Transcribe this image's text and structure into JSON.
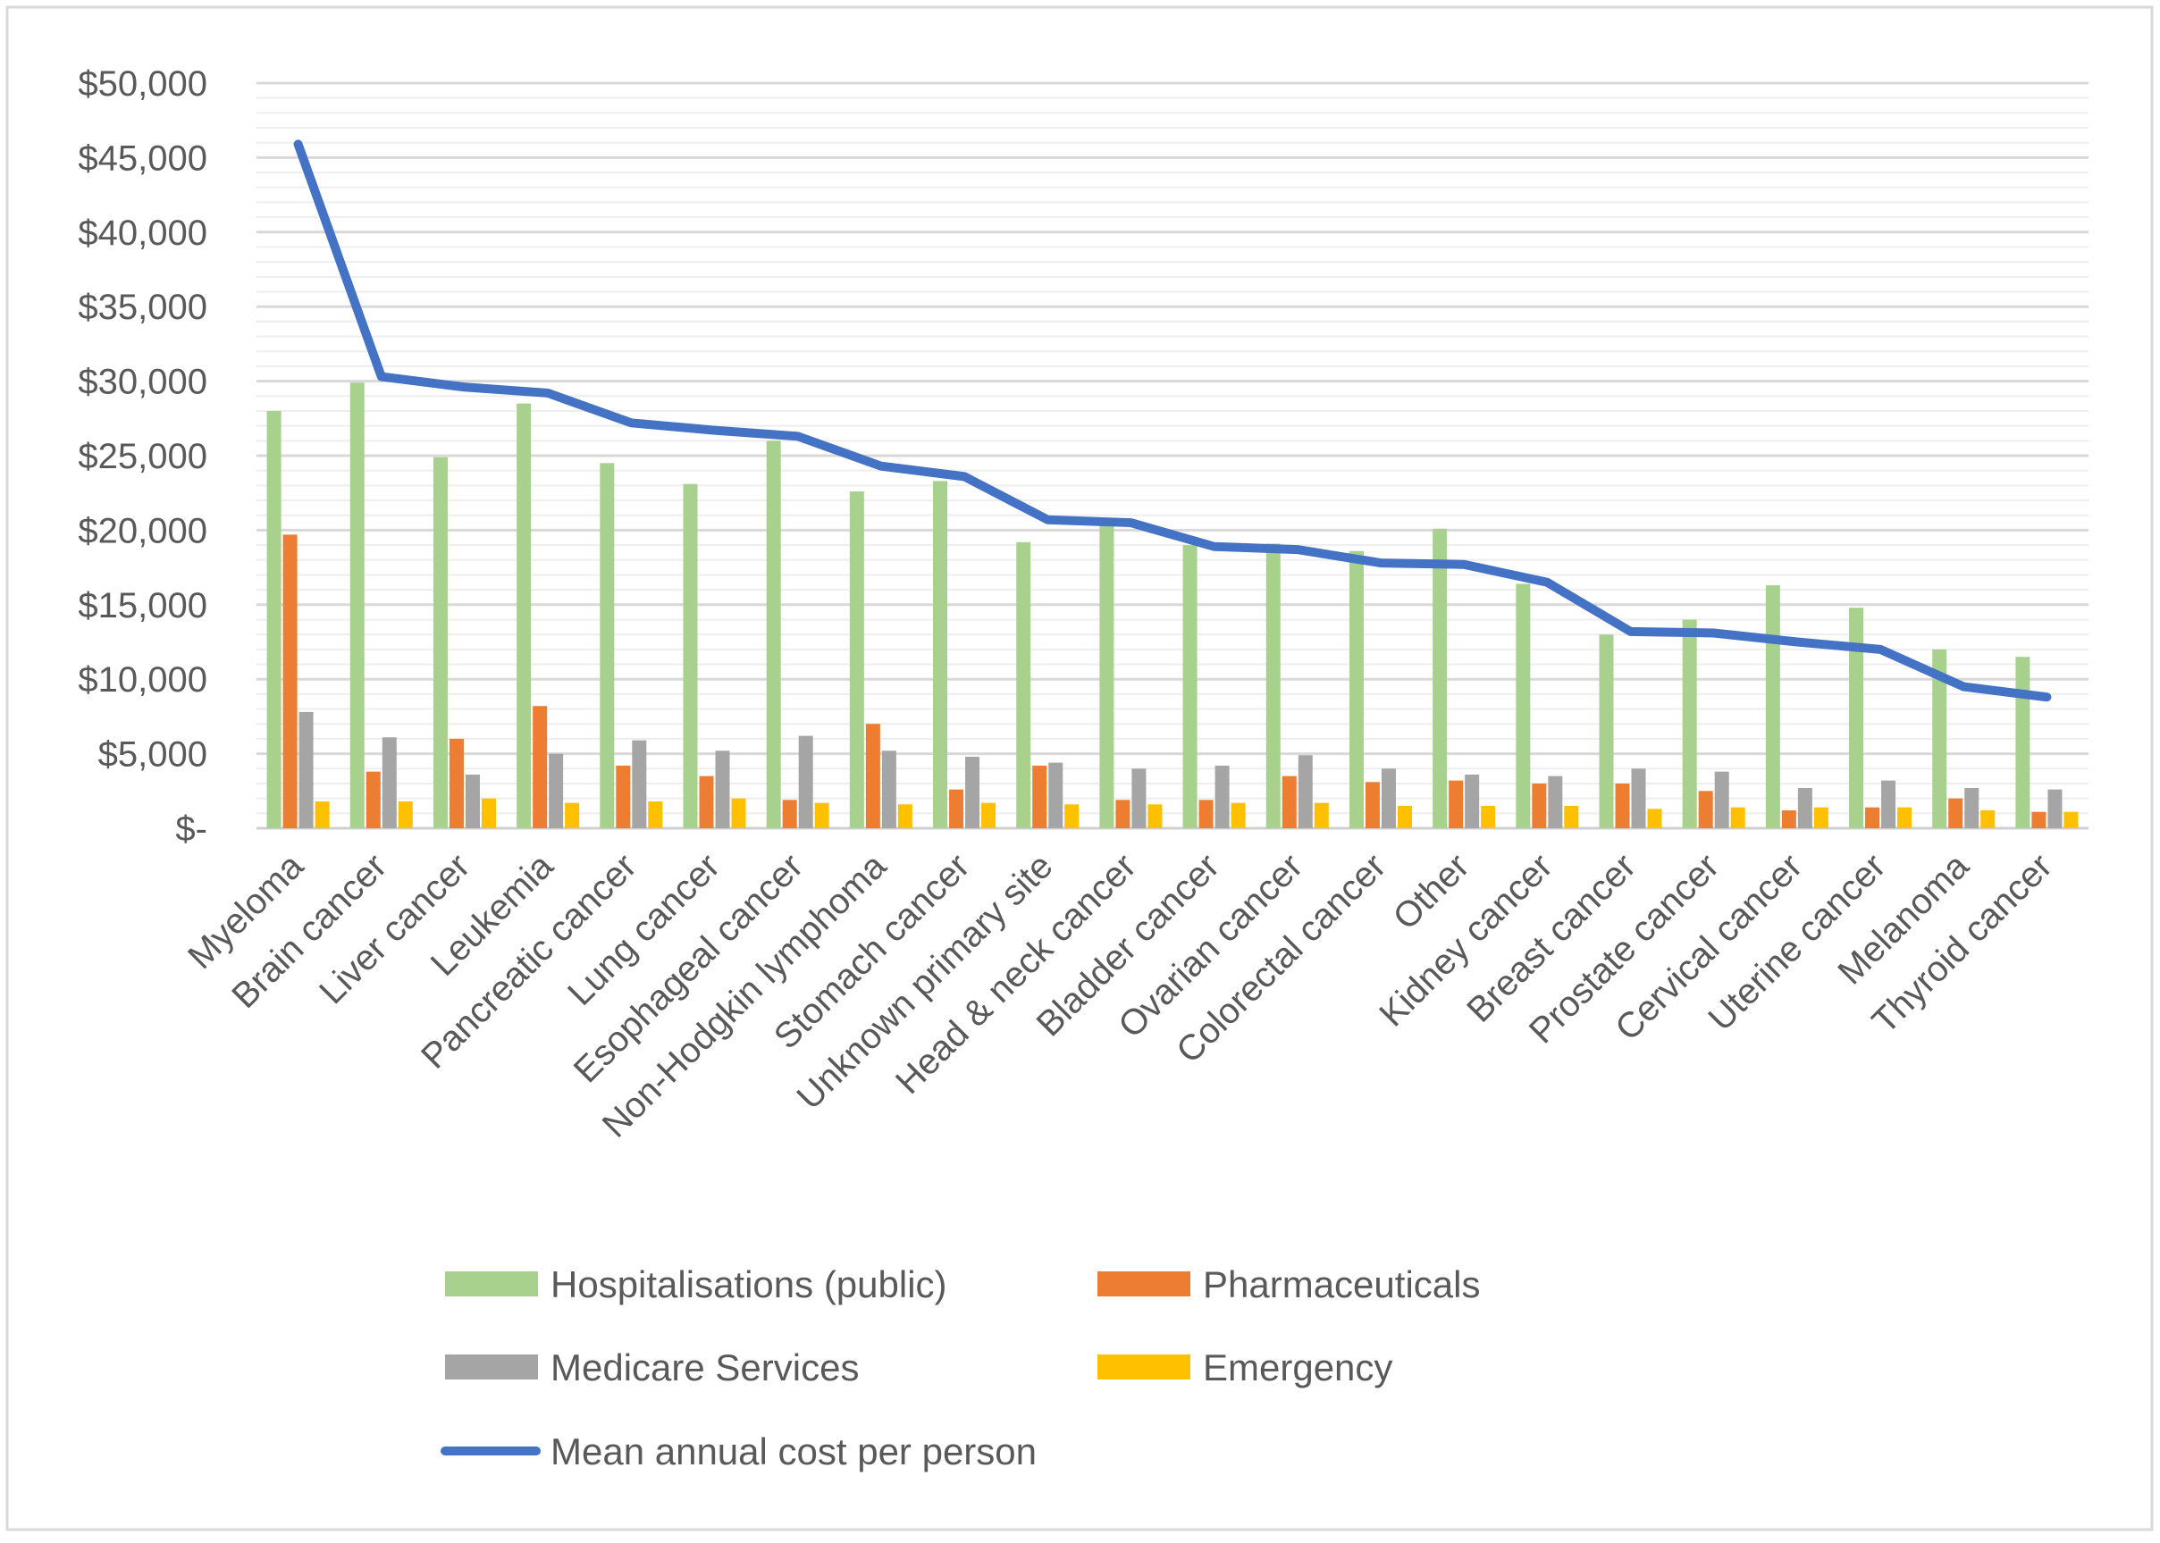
{
  "chart_data": {
    "type": "bar",
    "title": "",
    "xlabel": "",
    "ylabel": "",
    "ylim": [
      0,
      50000
    ],
    "ytick_step": 5000,
    "minor_grid_step": 1000,
    "y_tick_labels": [
      "$-",
      "$5,000",
      "$10,000",
      "$15,000",
      "$20,000",
      "$25,000",
      "$30,000",
      "$35,000",
      "$40,000",
      "$45,000",
      "$50,000"
    ],
    "legend_position": "bottom",
    "categories": [
      "Myeloma",
      "Brain cancer",
      "Liver cancer",
      "Leukemia",
      "Pancreatic cancer",
      "Lung cancer",
      "Esophageal cancer",
      "Non-Hodgkin lymphoma",
      "Stomach cancer",
      "Unknown primary site",
      "Head & neck cancer",
      "Bladder cancer",
      "Ovarian cancer",
      "Colorectal cancer",
      "Other",
      "Kidney cancer",
      "Breast cancer",
      "Prostate cancer",
      "Cervical cancer",
      "Uterine cancer",
      "Melanoma",
      "Thyroid cancer"
    ],
    "series": [
      {
        "name": "Hospitalisations (public)",
        "type": "bar",
        "color": "#a9d18e",
        "values": [
          28000,
          29900,
          24900,
          28500,
          24500,
          23100,
          26000,
          22600,
          23300,
          19200,
          20400,
          19000,
          19100,
          18600,
          20100,
          16400,
          13000,
          14000,
          16300,
          14800,
          12000,
          11500
        ]
      },
      {
        "name": "Pharmaceuticals",
        "type": "bar",
        "color": "#ed7d31",
        "values": [
          19700,
          3800,
          6000,
          8200,
          4200,
          3500,
          1900,
          7000,
          2600,
          4200,
          1900,
          1900,
          3500,
          3100,
          3200,
          3000,
          3000,
          2500,
          1200,
          1400,
          2000,
          1100
        ]
      },
      {
        "name": "Medicare Services",
        "type": "bar",
        "color": "#a5a5a5",
        "values": [
          7800,
          6100,
          3600,
          5000,
          5900,
          5200,
          6200,
          5200,
          4800,
          4400,
          4000,
          4200,
          4900,
          4000,
          3600,
          3500,
          4000,
          3800,
          2700,
          3200,
          2700,
          2600
        ]
      },
      {
        "name": "Emergency",
        "type": "bar",
        "color": "#ffc000",
        "values": [
          1800,
          1800,
          2000,
          1700,
          1800,
          2000,
          1700,
          1600,
          1700,
          1600,
          1600,
          1700,
          1700,
          1500,
          1500,
          1500,
          1300,
          1400,
          1400,
          1400,
          1200,
          1100
        ]
      },
      {
        "name": "Mean annual cost per person",
        "type": "line",
        "color": "#4472c4",
        "values": [
          45900,
          30300,
          29600,
          29200,
          27200,
          26700,
          26300,
          24300,
          23600,
          20700,
          20500,
          18900,
          18700,
          17800,
          17700,
          16500,
          13200,
          13100,
          12500,
          12000,
          9500,
          8800
        ]
      }
    ]
  }
}
